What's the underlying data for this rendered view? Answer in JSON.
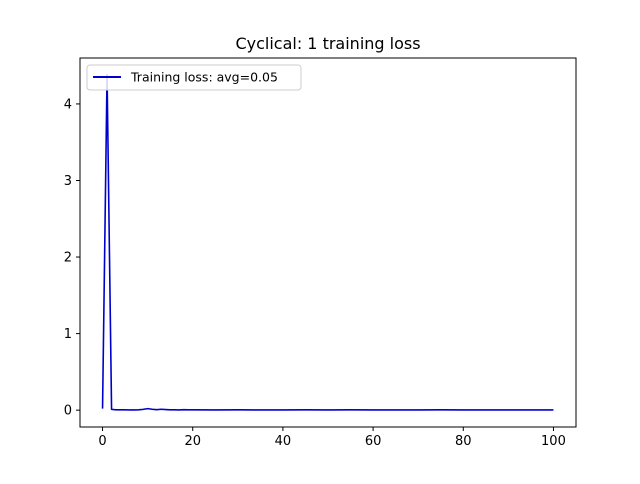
{
  "chart_data": {
    "type": "line",
    "title": "Cyclical: 1 training loss",
    "xlabel": "",
    "ylabel": "",
    "xlim": [
      -5,
      105
    ],
    "ylim": [
      -0.22,
      4.6
    ],
    "xticks": [
      0,
      20,
      40,
      60,
      80,
      100
    ],
    "yticks": [
      0,
      1,
      2,
      3,
      4
    ],
    "grid": false,
    "legend_position": "top-left",
    "series": [
      {
        "name": "Training loss: avg=0.05",
        "color": "#0000cd",
        "x": [
          0,
          1,
          2,
          3,
          4,
          5,
          6,
          7,
          8,
          9,
          10,
          11,
          12,
          13,
          14,
          15,
          16,
          17,
          18,
          19,
          20,
          25,
          30,
          35,
          40,
          45,
          50,
          55,
          60,
          65,
          70,
          75,
          80,
          85,
          90,
          95,
          100
        ],
        "y": [
          0.02,
          4.38,
          0.01,
          0.005,
          0.004,
          0.004,
          0.003,
          0.003,
          0.004,
          0.01,
          0.02,
          0.012,
          0.006,
          0.012,
          0.008,
          0.004,
          0.004,
          0.003,
          0.006,
          0.004,
          0.004,
          0.003,
          0.004,
          0.003,
          0.003,
          0.004,
          0.003,
          0.004,
          0.003,
          0.003,
          0.003,
          0.004,
          0.003,
          0.003,
          0.003,
          0.003,
          0.003
        ]
      }
    ]
  }
}
